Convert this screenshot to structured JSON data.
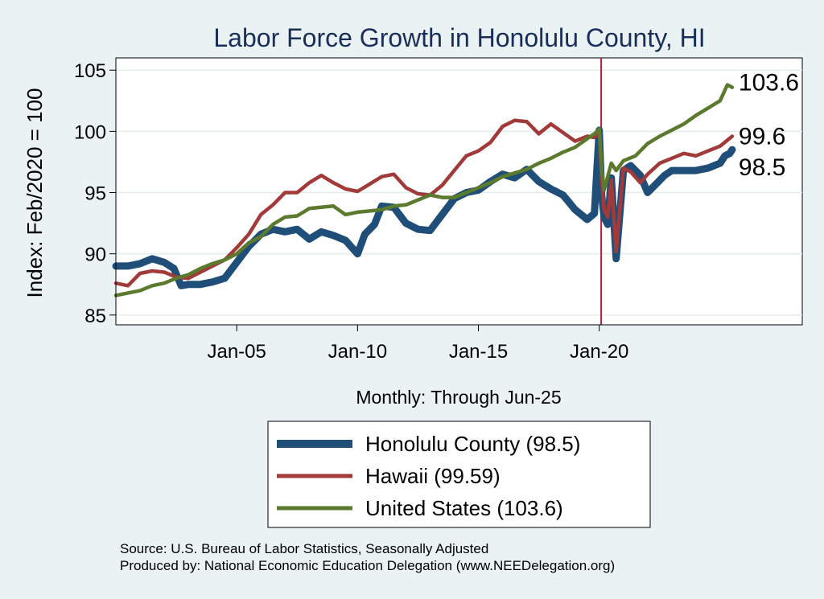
{
  "chart_data": {
    "type": "line",
    "title": "Labor Force Growth in Honolulu  County, HI",
    "ylabel": "Index: Feb/2020 = 100",
    "x_note": "Monthly: Through Jun-25",
    "ylim": [
      84.2,
      106
    ],
    "xlim": [
      2000.0,
      2028.4
    ],
    "yticks": [
      85,
      90,
      95,
      100,
      105
    ],
    "xticks": [
      {
        "value": 2005.0,
        "label": "Jan-05"
      },
      {
        "value": 2010.0,
        "label": "Jan-10"
      },
      {
        "value": 2015.0,
        "label": "Jan-15"
      },
      {
        "value": 2020.0,
        "label": "Jan-20"
      }
    ],
    "reference_line": 2020.08,
    "grid": true,
    "series": [
      {
        "name": "Honolulu  County (98.5)",
        "color": "#1f4e79",
        "end_label": "98.5",
        "points": [
          [
            2000.0,
            89.0
          ],
          [
            2000.5,
            89.0
          ],
          [
            2001.0,
            89.2
          ],
          [
            2001.5,
            89.6
          ],
          [
            2002.0,
            89.3
          ],
          [
            2002.4,
            88.8
          ],
          [
            2002.7,
            87.4
          ],
          [
            2003.0,
            87.5
          ],
          [
            2003.5,
            87.5
          ],
          [
            2004.0,
            87.7
          ],
          [
            2004.5,
            88.0
          ],
          [
            2005.0,
            89.3
          ],
          [
            2005.5,
            90.6
          ],
          [
            2006.0,
            91.6
          ],
          [
            2006.5,
            92.0
          ],
          [
            2007.0,
            91.8
          ],
          [
            2007.5,
            92.0
          ],
          [
            2008.0,
            91.2
          ],
          [
            2008.5,
            91.8
          ],
          [
            2009.0,
            91.5
          ],
          [
            2009.5,
            91.1
          ],
          [
            2010.0,
            90.0
          ],
          [
            2010.3,
            91.6
          ],
          [
            2010.7,
            92.4
          ],
          [
            2011.0,
            93.9
          ],
          [
            2011.5,
            93.8
          ],
          [
            2012.0,
            92.5
          ],
          [
            2012.5,
            92.0
          ],
          [
            2013.0,
            91.9
          ],
          [
            2013.5,
            93.2
          ],
          [
            2014.0,
            94.5
          ],
          [
            2014.5,
            95.0
          ],
          [
            2015.0,
            95.2
          ],
          [
            2015.5,
            95.9
          ],
          [
            2016.0,
            96.5
          ],
          [
            2016.5,
            96.2
          ],
          [
            2017.0,
            96.9
          ],
          [
            2017.5,
            95.9
          ],
          [
            2018.0,
            95.3
          ],
          [
            2018.5,
            94.8
          ],
          [
            2019.0,
            93.6
          ],
          [
            2019.5,
            92.8
          ],
          [
            2019.8,
            93.3
          ],
          [
            2019.9,
            96.8
          ],
          [
            2020.0,
            100.1
          ],
          [
            2020.1,
            94.8
          ],
          [
            2020.2,
            93.0
          ],
          [
            2020.35,
            92.4
          ],
          [
            2020.5,
            96.2
          ],
          [
            2020.7,
            89.6
          ],
          [
            2021.0,
            96.8
          ],
          [
            2021.3,
            97.2
          ],
          [
            2021.7,
            96.4
          ],
          [
            2022.0,
            95.0
          ],
          [
            2022.3,
            95.6
          ],
          [
            2022.7,
            96.4
          ],
          [
            2023.0,
            96.8
          ],
          [
            2023.5,
            96.8
          ],
          [
            2024.0,
            96.8
          ],
          [
            2024.5,
            97.0
          ],
          [
            2025.0,
            97.4
          ],
          [
            2025.2,
            98.0
          ],
          [
            2025.4,
            98.2
          ],
          [
            2025.5,
            98.5
          ]
        ]
      },
      {
        "name": "Hawaii (99.59)",
        "color": "#a33a3a",
        "end_label": "99.6",
        "points": [
          [
            2000.0,
            87.6
          ],
          [
            2000.5,
            87.4
          ],
          [
            2001.0,
            88.4
          ],
          [
            2001.5,
            88.6
          ],
          [
            2002.0,
            88.5
          ],
          [
            2002.5,
            88.1
          ],
          [
            2003.0,
            88.0
          ],
          [
            2003.5,
            88.5
          ],
          [
            2004.0,
            89.0
          ],
          [
            2004.5,
            89.5
          ],
          [
            2005.0,
            90.5
          ],
          [
            2005.5,
            91.6
          ],
          [
            2006.0,
            93.2
          ],
          [
            2006.5,
            94.0
          ],
          [
            2007.0,
            95.0
          ],
          [
            2007.5,
            95.0
          ],
          [
            2008.0,
            95.8
          ],
          [
            2008.5,
            96.4
          ],
          [
            2009.0,
            95.8
          ],
          [
            2009.5,
            95.3
          ],
          [
            2010.0,
            95.1
          ],
          [
            2010.5,
            95.7
          ],
          [
            2011.0,
            96.3
          ],
          [
            2011.5,
            96.5
          ],
          [
            2012.0,
            95.4
          ],
          [
            2012.5,
            94.9
          ],
          [
            2013.0,
            94.8
          ],
          [
            2013.5,
            95.6
          ],
          [
            2014.0,
            96.8
          ],
          [
            2014.5,
            98.0
          ],
          [
            2015.0,
            98.4
          ],
          [
            2015.5,
            99.1
          ],
          [
            2016.0,
            100.4
          ],
          [
            2016.5,
            100.9
          ],
          [
            2017.0,
            100.8
          ],
          [
            2017.5,
            99.8
          ],
          [
            2018.0,
            100.6
          ],
          [
            2018.5,
            99.9
          ],
          [
            2019.0,
            99.2
          ],
          [
            2019.5,
            99.6
          ],
          [
            2019.8,
            99.5
          ],
          [
            2020.0,
            100.0
          ],
          [
            2020.1,
            96.3
          ],
          [
            2020.2,
            93.6
          ],
          [
            2020.35,
            93.0
          ],
          [
            2020.5,
            96.0
          ],
          [
            2020.7,
            90.2
          ],
          [
            2021.0,
            97.0
          ],
          [
            2021.3,
            96.7
          ],
          [
            2021.7,
            95.8
          ],
          [
            2022.0,
            96.5
          ],
          [
            2022.5,
            97.4
          ],
          [
            2023.0,
            97.8
          ],
          [
            2023.5,
            98.2
          ],
          [
            2024.0,
            98.0
          ],
          [
            2024.5,
            98.4
          ],
          [
            2025.0,
            98.8
          ],
          [
            2025.5,
            99.6
          ]
        ]
      },
      {
        "name": "United States (103.6)",
        "color": "#5b7a2e",
        "end_label": "103.6",
        "points": [
          [
            2000.0,
            86.6
          ],
          [
            2000.5,
            86.8
          ],
          [
            2001.0,
            87.0
          ],
          [
            2001.5,
            87.4
          ],
          [
            2002.0,
            87.6
          ],
          [
            2002.5,
            88.0
          ],
          [
            2003.0,
            88.3
          ],
          [
            2003.5,
            88.8
          ],
          [
            2004.0,
            89.2
          ],
          [
            2004.5,
            89.5
          ],
          [
            2005.0,
            90.0
          ],
          [
            2005.5,
            90.9
          ],
          [
            2006.0,
            91.4
          ],
          [
            2006.5,
            92.4
          ],
          [
            2007.0,
            93.0
          ],
          [
            2007.5,
            93.1
          ],
          [
            2008.0,
            93.7
          ],
          [
            2008.5,
            93.8
          ],
          [
            2009.0,
            93.9
          ],
          [
            2009.5,
            93.2
          ],
          [
            2010.0,
            93.4
          ],
          [
            2010.5,
            93.5
          ],
          [
            2011.0,
            93.6
          ],
          [
            2011.5,
            93.9
          ],
          [
            2012.0,
            94.0
          ],
          [
            2012.5,
            94.4
          ],
          [
            2013.0,
            94.8
          ],
          [
            2013.5,
            94.6
          ],
          [
            2014.0,
            94.6
          ],
          [
            2014.5,
            95.0
          ],
          [
            2015.0,
            95.4
          ],
          [
            2015.5,
            95.8
          ],
          [
            2016.0,
            96.3
          ],
          [
            2016.5,
            96.6
          ],
          [
            2017.0,
            96.9
          ],
          [
            2017.5,
            97.4
          ],
          [
            2018.0,
            97.8
          ],
          [
            2018.5,
            98.3
          ],
          [
            2019.0,
            98.7
          ],
          [
            2019.5,
            99.4
          ],
          [
            2019.8,
            99.8
          ],
          [
            2020.0,
            100.2
          ],
          [
            2020.1,
            97.0
          ],
          [
            2020.2,
            95.2
          ],
          [
            2020.5,
            97.4
          ],
          [
            2020.7,
            96.8
          ],
          [
            2021.0,
            97.6
          ],
          [
            2021.5,
            98.0
          ],
          [
            2022.0,
            99.0
          ],
          [
            2022.5,
            99.6
          ],
          [
            2023.0,
            100.1
          ],
          [
            2023.5,
            100.6
          ],
          [
            2024.0,
            101.3
          ],
          [
            2024.5,
            101.9
          ],
          [
            2025.0,
            102.5
          ],
          [
            2025.3,
            103.8
          ],
          [
            2025.5,
            103.6
          ]
        ]
      }
    ]
  },
  "source_line1": "Source: U.S. Bureau of Labor Statistics, Seasonally Adjusted",
  "source_line2": "Produced by: National Economic Education Delegation (www.NEEDelegation.org)"
}
